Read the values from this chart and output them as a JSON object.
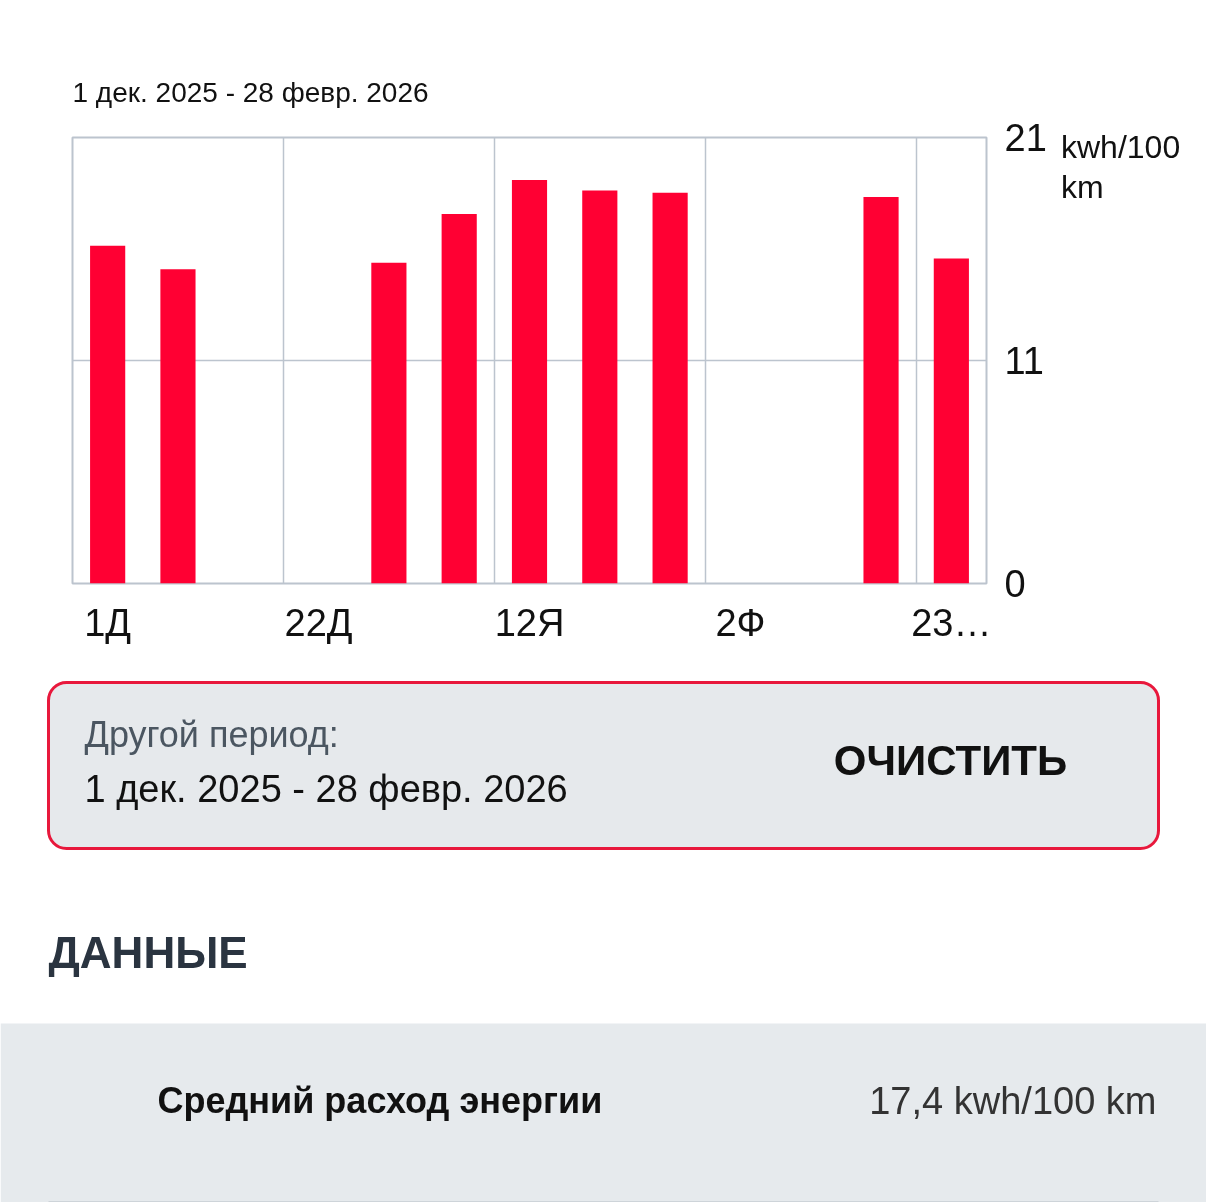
{
  "chart_data": {
    "type": "bar",
    "title": "1 дек. 2025 - 28 февр. 2026",
    "ylabel": "kwh/100 km",
    "categories": [
      "1Д",
      null,
      null,
      "22Д",
      null,
      null,
      "12Я",
      null,
      null,
      "2Ф",
      null,
      null,
      "23…"
    ],
    "values": [
      15.9,
      14.8,
      null,
      null,
      15.1,
      17.4,
      19.0,
      18.5,
      18.4,
      null,
      null,
      18.2,
      15.3
    ],
    "color": "#ff0033",
    "ylim": [
      0,
      21
    ],
    "yticks": [
      0,
      {
        "value": 10.5,
        "label": "11"
      },
      21
    ],
    "grid": true,
    "annotations": [
      "Другой период:",
      "1 дек. 2025 - 28 февр. 2026",
      "ОЧИСТИТЬ",
      "ДАННЫЕ",
      "Средний расход энергии",
      "17,4 kwh/100 km"
    ]
  }
}
